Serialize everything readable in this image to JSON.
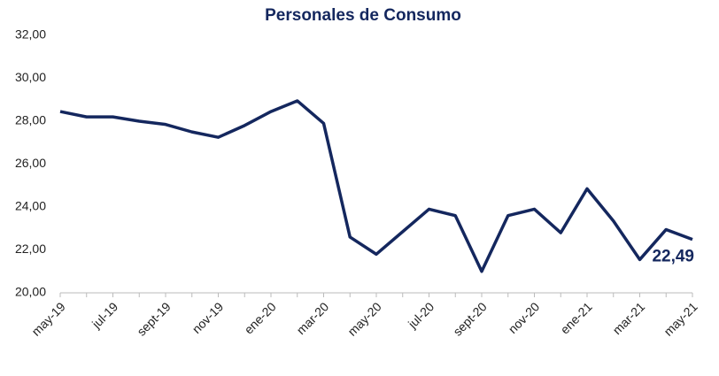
{
  "chart_data": {
    "type": "line",
    "title": "Personales de Consumo",
    "categories": [
      "may-19",
      null,
      "jul-19",
      null,
      "sept-19",
      null,
      "nov-19",
      null,
      "ene-20",
      null,
      "mar-20",
      null,
      "may-20",
      null,
      "jul-20",
      null,
      "sept-20",
      null,
      "nov-20",
      null,
      "ene-21",
      null,
      "mar-21",
      null,
      "may-21"
    ],
    "series": [
      {
        "name": "Personales de Consumo",
        "color": "#14275e",
        "values": [
          28.45,
          28.2,
          28.2,
          28.0,
          27.85,
          27.5,
          27.25,
          27.8,
          28.45,
          28.95,
          27.9,
          22.6,
          21.8,
          22.85,
          23.9,
          23.6,
          21.0,
          23.6,
          23.9,
          22.8,
          24.85,
          23.35,
          21.55,
          22.95,
          22.49
        ],
        "value_labels": [
          null,
          null,
          null,
          null,
          null,
          null,
          null,
          null,
          null,
          null,
          null,
          null,
          null,
          null,
          null,
          null,
          null,
          null,
          null,
          null,
          null,
          null,
          null,
          null,
          "22,49"
        ]
      }
    ],
    "ylim": [
      20,
      32
    ],
    "yticks": [
      {
        "value": 20,
        "label": "20,00"
      },
      {
        "value": 22,
        "label": "22,00"
      },
      {
        "value": 24,
        "label": "24,00"
      },
      {
        "value": 26,
        "label": "26,00"
      },
      {
        "value": 28,
        "label": "28,00"
      },
      {
        "value": 30,
        "label": "30,00"
      },
      {
        "value": 32,
        "label": "32,00"
      }
    ]
  }
}
